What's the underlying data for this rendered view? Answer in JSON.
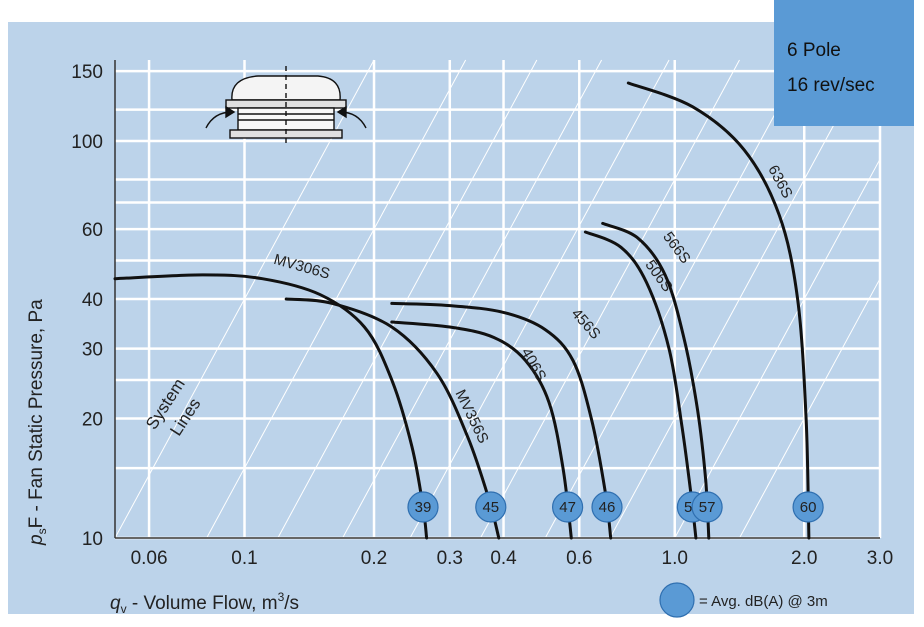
{
  "chart_data": {
    "type": "line",
    "title": "",
    "xlabel_prefix": "q",
    "xlabel_sub": "v",
    "xlabel_text": " - Volume Flow, m",
    "xlabel_sup": "3",
    "xlabel_suffix": "/s",
    "ylabel_prefix": "p",
    "ylabel_sub": "s",
    "ylabel_text": "F - Fan Static Pressure, Pa",
    "x_scale": "log",
    "y_scale": "log",
    "xlim": [
      0.05,
      3.0
    ],
    "ylim": [
      10,
      160
    ],
    "x_ticks": [
      {
        "value": 0.06,
        "label": "0.06"
      },
      {
        "value": 0.1,
        "label": "0.1"
      },
      {
        "value": 0.2,
        "label": "0.2"
      },
      {
        "value": 0.3,
        "label": "0.3"
      },
      {
        "value": 0.4,
        "label": "0.4"
      },
      {
        "value": 0.6,
        "label": "0.6"
      },
      {
        "value": 1.0,
        "label": "1.0"
      },
      {
        "value": 2.0,
        "label": "2.0"
      },
      {
        "value": 3.0,
        "label": "3.0"
      }
    ],
    "y_ticks": [
      {
        "value": 10,
        "label": "10"
      },
      {
        "value": 20,
        "label": "20"
      },
      {
        "value": 30,
        "label": "30"
      },
      {
        "value": 40,
        "label": "40"
      },
      {
        "value": 60,
        "label": "60"
      },
      {
        "value": 100,
        "label": "100"
      },
      {
        "value": 150,
        "label": "150"
      }
    ],
    "x_grid": [
      0.06,
      0.1,
      0.2,
      0.3,
      0.4,
      0.6,
      1.0,
      2.0,
      3.0
    ],
    "y_grid": [
      10,
      15,
      20,
      25,
      30,
      40,
      50,
      60,
      70,
      80,
      100,
      120,
      150
    ],
    "system_lines_label": [
      "System",
      "Lines"
    ],
    "system_lines_k": [
      4000,
      1500,
      700,
      350,
      170,
      80,
      40,
      20,
      10,
      5
    ],
    "info_box": [
      "6 Pole",
      "16 rev/sec"
    ],
    "legend_text": "= Avg. dB(A) @ 3m",
    "series": [
      {
        "name": "MV306S",
        "badge": "39",
        "points": [
          [
            0.05,
            45
          ],
          [
            0.08,
            46
          ],
          [
            0.11,
            45
          ],
          [
            0.15,
            41
          ],
          [
            0.19,
            34
          ],
          [
            0.22,
            25
          ],
          [
            0.245,
            17
          ],
          [
            0.26,
            12
          ],
          [
            0.265,
            10
          ]
        ],
        "label_point": [
          0.135,
          47
        ]
      },
      {
        "name": "MV356S",
        "badge": "45",
        "points": [
          [
            0.125,
            40
          ],
          [
            0.16,
            39
          ],
          [
            0.22,
            34
          ],
          [
            0.28,
            26
          ],
          [
            0.33,
            18
          ],
          [
            0.37,
            12.5
          ],
          [
            0.39,
            10
          ]
        ],
        "label_point": [
          0.33,
          20
        ]
      },
      {
        "name": "406S",
        "badge": "47",
        "points": [
          [
            0.22,
            35
          ],
          [
            0.3,
            34
          ],
          [
            0.38,
            32
          ],
          [
            0.45,
            28
          ],
          [
            0.51,
            22
          ],
          [
            0.55,
            15
          ],
          [
            0.575,
            10
          ]
        ],
        "label_point": [
          0.46,
          27
        ]
      },
      {
        "name": "456S",
        "badge": "46",
        "points": [
          [
            0.22,
            39
          ],
          [
            0.3,
            38.5
          ],
          [
            0.4,
            37
          ],
          [
            0.5,
            33.5
          ],
          [
            0.58,
            28
          ],
          [
            0.64,
            20
          ],
          [
            0.69,
            13
          ],
          [
            0.71,
            10
          ]
        ],
        "label_point": [
          0.61,
          34
        ]
      },
      {
        "name": "506S",
        "badge": "51",
        "points": [
          [
            0.62,
            59
          ],
          [
            0.75,
            54
          ],
          [
            0.86,
            44
          ],
          [
            0.97,
            30
          ],
          [
            1.04,
            19
          ],
          [
            1.09,
            13
          ],
          [
            1.12,
            10
          ]
        ],
        "label_point": [
          0.9,
          45
        ]
      },
      {
        "name": "566S",
        "badge": "57",
        "points": [
          [
            0.68,
            62
          ],
          [
            0.82,
            57
          ],
          [
            0.95,
            46
          ],
          [
            1.05,
            32
          ],
          [
            1.13,
            21
          ],
          [
            1.18,
            14
          ],
          [
            1.2,
            10
          ]
        ],
        "label_point": [
          0.99,
          53
        ]
      },
      {
        "name": "636S",
        "badge": "60",
        "points": [
          [
            0.78,
            140
          ],
          [
            1.1,
            122
          ],
          [
            1.45,
            95
          ],
          [
            1.75,
            65
          ],
          [
            1.93,
            40
          ],
          [
            2.02,
            20
          ],
          [
            2.05,
            10
          ]
        ],
        "label_point": [
          1.72,
          78
        ]
      }
    ]
  }
}
